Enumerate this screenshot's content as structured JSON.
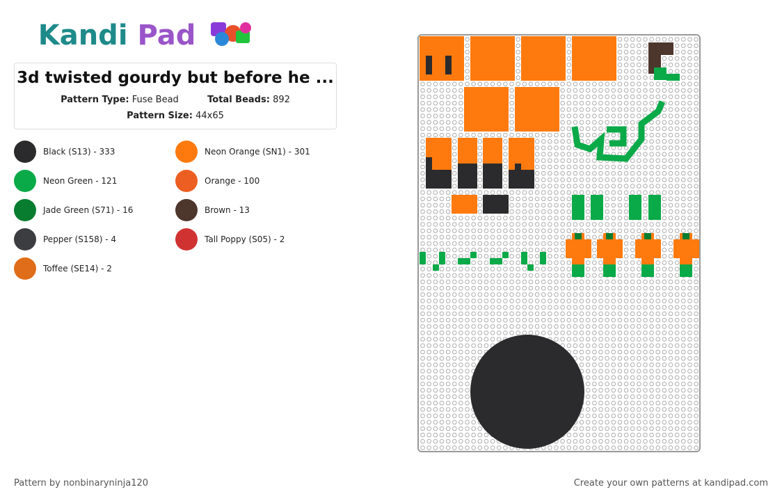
{
  "logo": {
    "first": "Kandi",
    "second": "Pad"
  },
  "title": "3d twisted gourdy but before he ...",
  "details": {
    "pattern_type_label": "Pattern Type:",
    "pattern_type": "Fuse Bead",
    "total_beads_label": "Total Beads:",
    "total_beads": "892",
    "pattern_size_label": "Pattern Size:",
    "pattern_size": "44x65"
  },
  "colors": [
    {
      "label": "Black (S13) - 333",
      "color": "#2b2b2d"
    },
    {
      "label": "Neon Orange (SN1) - 301",
      "color": "#ff7a0e"
    },
    {
      "label": "Neon Green - 121",
      "color": "#0aaa48"
    },
    {
      "label": "Orange - 100",
      "color": "#ec5e22"
    },
    {
      "label": "Jade Green (S71) - 16",
      "color": "#087d2f"
    },
    {
      "label": "Brown - 13",
      "color": "#4d362c"
    },
    {
      "label": "Pepper (S158) - 4",
      "color": "#3c3d40"
    },
    {
      "label": "Tall Poppy (S05) - 2",
      "color": "#d03232"
    },
    {
      "label": "Toffee (SE14) - 2",
      "color": "#e06d19"
    }
  ],
  "footer": {
    "credit": "Pattern by nonbinaryninja120",
    "cta": "Create your own patterns at kandipad.com"
  }
}
